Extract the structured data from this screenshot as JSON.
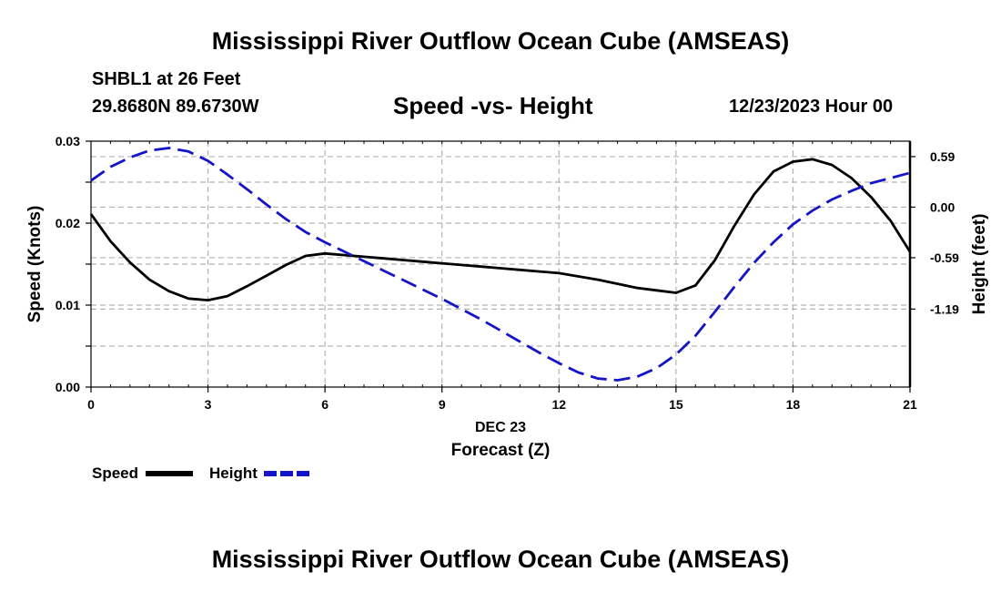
{
  "header": {
    "title": "Mississippi River Outflow Ocean Cube (AMSEAS)",
    "station": "SHBL1 at 26 Feet",
    "coords": "29.8680N  89.6730W",
    "subtitle": "Speed -vs- Height",
    "datetime": "12/23/2023 Hour 00"
  },
  "footer": {
    "title": "Mississippi River Outflow Ocean Cube (AMSEAS)"
  },
  "legend": {
    "speed_label": "Speed",
    "height_label": "Height"
  },
  "colors": {
    "speed": "#000000",
    "height": "#1515c8",
    "grid": "#b4b4b4"
  },
  "chart_data": {
    "type": "line",
    "title": "Speed -vs- Height",
    "xlabel": "Forecast (Z)",
    "xlabel_date": "DEC 23",
    "ylabel_left": "Speed (Knots)",
    "ylabel_right": "Height (feet)",
    "xlim": [
      0,
      21
    ],
    "ylim_left": [
      0,
      0.03
    ],
    "ylim_right": [
      -2.1,
      0.77
    ],
    "x_ticks": [
      0,
      3,
      6,
      9,
      12,
      15,
      18,
      21
    ],
    "x_tick_labels": [
      "0",
      "3",
      "6",
      "9",
      "12",
      "15",
      "18",
      "21"
    ],
    "y_left_ticks": [
      0,
      0.005,
      0.01,
      0.015,
      0.02,
      0.025,
      0.03
    ],
    "y_left_tick_labels": [
      "0.00",
      "",
      "0.01",
      "",
      "0.02",
      "",
      "0.03"
    ],
    "y_right_ticks": [
      0.59,
      0.0,
      -0.59,
      -1.19
    ],
    "y_right_tick_labels": [
      "0.59",
      "0.00",
      "-0.59",
      "-1.19"
    ],
    "grid": true,
    "series": [
      {
        "name": "Speed",
        "axis": "left",
        "style": "solid",
        "x": [
          0,
          0.5,
          1,
          1.5,
          2,
          2.5,
          3,
          3.5,
          4,
          4.5,
          5,
          5.5,
          6,
          6.5,
          7,
          7.5,
          8,
          8.5,
          9,
          9.5,
          10,
          10.5,
          11,
          11.5,
          12,
          12.5,
          13,
          13.5,
          14,
          14.5,
          15,
          15.5,
          16,
          16.5,
          17,
          17.5,
          18,
          18.5,
          19,
          19.5,
          20,
          20.5,
          21
        ],
        "values": [
          0.0211,
          0.0178,
          0.0152,
          0.0131,
          0.0117,
          0.0108,
          0.0106,
          0.0111,
          0.0123,
          0.0136,
          0.0149,
          0.016,
          0.0163,
          0.0161,
          0.0159,
          0.0157,
          0.0155,
          0.0153,
          0.0151,
          0.0149,
          0.0147,
          0.0145,
          0.0143,
          0.0141,
          0.0139,
          0.0135,
          0.0131,
          0.0126,
          0.0121,
          0.0118,
          0.0115,
          0.0124,
          0.0155,
          0.0197,
          0.0235,
          0.0263,
          0.0275,
          0.0278,
          0.0271,
          0.0255,
          0.0232,
          0.0203,
          0.0165
        ]
      },
      {
        "name": "Height",
        "axis": "right",
        "style": "dashed",
        "x": [
          0,
          0.5,
          1,
          1.5,
          2,
          2.5,
          3,
          3.5,
          4,
          4.5,
          5,
          5.5,
          6,
          6.5,
          7,
          7.5,
          8,
          8.5,
          9,
          9.5,
          10,
          10.5,
          11,
          11.5,
          12,
          12.5,
          13,
          13.5,
          14,
          14.5,
          15,
          15.5,
          16,
          16.5,
          17,
          17.5,
          18,
          18.5,
          19,
          19.5,
          20,
          20.5,
          21
        ],
        "values": [
          0.31,
          0.47,
          0.58,
          0.66,
          0.69,
          0.65,
          0.54,
          0.38,
          0.21,
          0.03,
          -0.14,
          -0.29,
          -0.41,
          -0.52,
          -0.63,
          -0.74,
          -0.85,
          -0.96,
          -1.07,
          -1.19,
          -1.31,
          -1.44,
          -1.57,
          -1.7,
          -1.82,
          -1.93,
          -2.0,
          -2.02,
          -1.98,
          -1.88,
          -1.72,
          -1.5,
          -1.22,
          -0.93,
          -0.65,
          -0.41,
          -0.2,
          -0.04,
          0.09,
          0.19,
          0.28,
          0.34,
          0.4
        ]
      }
    ]
  }
}
